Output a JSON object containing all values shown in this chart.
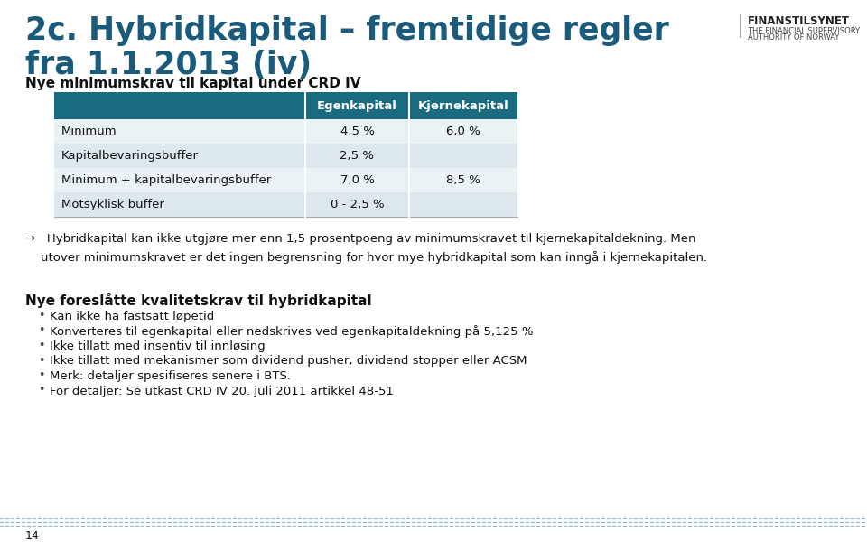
{
  "title_line1": "2c. Hybridkapital – fremtidige regler",
  "title_line2": "fra 1.1.2013 (iv)",
  "title_color": "#1a5a7a",
  "subtitle": "Nye minimumskrav til kapital under CRD IV",
  "table_header": [
    "",
    "Egenkapital",
    "Kjernekapital"
  ],
  "table_rows": [
    [
      "Minimum",
      "4,5 %",
      "6,0 %"
    ],
    [
      "Kapitalbevaringsbuffer",
      "2,5 %",
      ""
    ],
    [
      "Minimum + kapitalbevaringsbuffer",
      "7,0 %",
      "8,5 %"
    ],
    [
      "Motsyklisk buffer",
      "0 - 2,5 %",
      ""
    ]
  ],
  "header_bg": "#1a6a80",
  "header_fg": "#ffffff",
  "row_bg_light": "#dce8ee",
  "row_bg_lighter": "#eaf2f6",
  "arrow_line1": "→   Hybridkapital kan ikke utgjøre mer enn 1,5 prosentpoeng av minimumskravet til kjernekapitaldekning. Men",
  "arrow_line2": "    utover minimumskravet er det ingen begrensning for hvor mye hybridkapital som kan inngå i kjernekapitalen.",
  "section2_title": "Nye foreslåtte kvalitetskrav til hybridkapital",
  "bullets": [
    "Kan ikke ha fastsatt løpetid",
    "Konverteres til egenkapital eller nedskrives ved egenkapitaldekning på 5,125 %",
    "Ikke tillatt med insentiv til innløsing",
    "Ikke tillatt med mekanismer som dividend pusher, dividend stopper eller ACSM",
    "Merk: detaljer spesifiseres senere i BTS.",
    "For detaljer: Se utkast CRD IV 20. juli 2011 artikkel 48-51"
  ],
  "footer_text": "14",
  "background_color": "#ffffff",
  "logo_text_main": "FINANSTILSYNET",
  "logo_text_sub1": "THE FINANCIAL SUPERVISORY",
  "logo_text_sub2": "AUTHORITY OF NORWAY",
  "footer_line_color": "#88bbcc"
}
